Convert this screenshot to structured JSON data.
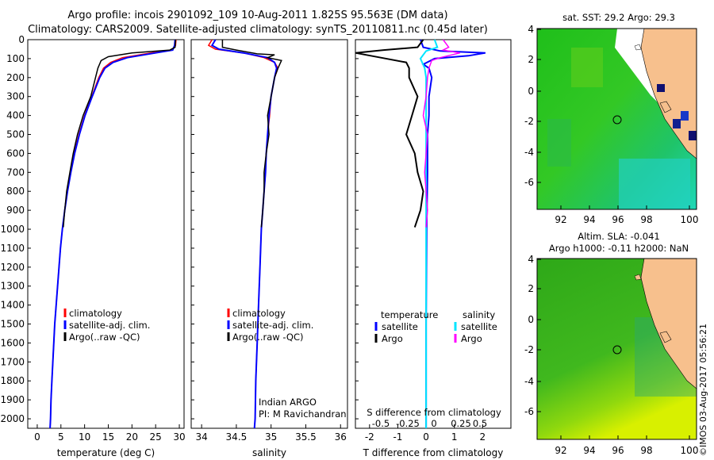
{
  "header": {
    "title_line1": "Argo profile: incois 2901092_109 10-Aug-2011 1.825S 95.563E (DM data)",
    "title_line2": "Climatology: CARS2009. Satellite-adjusted climatology: synTS_20110811.nc (0.45d later)"
  },
  "colors": {
    "clim": "#ff0000",
    "sat": "#0000ff",
    "argo": "#000000",
    "sal_sat": "#00e5ff",
    "sal_argo": "#ff00ff"
  },
  "chart_data": [
    {
      "type": "line",
      "id": "temperature",
      "xlabel": "temperature (deg C)",
      "ylabel": "",
      "xlim": [
        -2,
        31
      ],
      "ylim": [
        2050,
        0
      ],
      "xticks": [
        0,
        5,
        10,
        15,
        20,
        25,
        30
      ],
      "yticks": [
        0,
        100,
        200,
        300,
        400,
        500,
        600,
        700,
        800,
        900,
        1000,
        1100,
        1200,
        1300,
        1400,
        1500,
        1600,
        1700,
        1800,
        1900,
        2000
      ],
      "legend": [
        "climatology",
        "satellite-adj. clim.",
        "Argo(..raw -QC)"
      ],
      "series": [
        {
          "name": "climatology",
          "color": "#ff0000",
          "points": [
            [
              29.3,
              0
            ],
            [
              29.2,
              30
            ],
            [
              28.5,
              55
            ],
            [
              24,
              70
            ],
            [
              18,
              95
            ],
            [
              15.5,
              120
            ],
            [
              14,
              150
            ],
            [
              13,
              200
            ],
            [
              11.5,
              300
            ],
            [
              10,
              400
            ],
            [
              8.8,
              500
            ],
            [
              7.8,
              600
            ],
            [
              7,
              700
            ],
            [
              6.3,
              800
            ],
            [
              5.8,
              900
            ],
            [
              5.3,
              1000
            ],
            [
              4.9,
              1100
            ],
            [
              4.6,
              1200
            ],
            [
              4.3,
              1300
            ],
            [
              4,
              1400
            ],
            [
              3.7,
              1500
            ],
            [
              3.5,
              1600
            ],
            [
              3.3,
              1700
            ],
            [
              3.1,
              1800
            ],
            [
              2.9,
              1900
            ],
            [
              2.8,
              2000
            ],
            [
              2.7,
              2050
            ]
          ]
        },
        {
          "name": "satellite-adj. clim.",
          "color": "#0000ff",
          "points": [
            [
              29.1,
              0
            ],
            [
              29,
              30
            ],
            [
              28.6,
              55
            ],
            [
              25,
              70
            ],
            [
              19,
              95
            ],
            [
              16,
              120
            ],
            [
              14.3,
              150
            ],
            [
              13.2,
              200
            ],
            [
              11.6,
              300
            ],
            [
              10.1,
              400
            ],
            [
              8.9,
              500
            ],
            [
              7.9,
              600
            ],
            [
              7.1,
              700
            ],
            [
              6.4,
              800
            ],
            [
              5.8,
              900
            ],
            [
              5.3,
              1000
            ],
            [
              4.9,
              1100
            ],
            [
              4.6,
              1200
            ],
            [
              4.3,
              1300
            ],
            [
              4,
              1400
            ],
            [
              3.7,
              1500
            ],
            [
              3.5,
              1600
            ],
            [
              3.3,
              1700
            ],
            [
              3.1,
              1800
            ],
            [
              2.9,
              1900
            ],
            [
              2.8,
              2000
            ],
            [
              2.7,
              2050
            ]
          ]
        },
        {
          "name": "Argo(..raw -QC)",
          "color": "#000000",
          "points": [
            [
              29.2,
              0
            ],
            [
              29.1,
              40
            ],
            [
              28,
              55
            ],
            [
              20,
              70
            ],
            [
              15,
              90
            ],
            [
              13.5,
              110
            ],
            [
              12.8,
              150
            ],
            [
              12.3,
              200
            ],
            [
              11.3,
              300
            ],
            [
              9.7,
              400
            ],
            [
              8.5,
              500
            ],
            [
              7.6,
              600
            ],
            [
              6.9,
              700
            ],
            [
              6.2,
              800
            ],
            [
              5.8,
              900
            ],
            [
              5.5,
              990
            ]
          ]
        }
      ]
    },
    {
      "type": "line",
      "id": "salinity",
      "xlabel": "salinity",
      "xlim": [
        33.85,
        36.1
      ],
      "ylim": [
        2050,
        0
      ],
      "xticks": [
        34,
        34.5,
        35,
        35.5,
        36
      ],
      "legend": [
        "climatology",
        "satellite-adj. clim.",
        "Argo(..raw -QC)"
      ],
      "annotation_line1": "Indian ARGO",
      "annotation_line2": "PI: M Ravichandran",
      "series": [
        {
          "name": "climatology",
          "color": "#ff0000",
          "points": [
            [
              34.15,
              0
            ],
            [
              34.1,
              30
            ],
            [
              34.2,
              50
            ],
            [
              34.6,
              70
            ],
            [
              34.9,
              95
            ],
            [
              35.05,
              120
            ],
            [
              35.1,
              150
            ],
            [
              35.05,
              200
            ],
            [
              35,
              300
            ],
            [
              34.98,
              400
            ],
            [
              34.95,
              500
            ],
            [
              34.93,
              600
            ],
            [
              34.92,
              700
            ],
            [
              34.9,
              800
            ],
            [
              34.88,
              900
            ],
            [
              34.86,
              1000
            ],
            [
              34.84,
              1200
            ],
            [
              34.82,
              1400
            ],
            [
              34.8,
              1600
            ],
            [
              34.78,
              1800
            ],
            [
              34.77,
              2000
            ],
            [
              34.76,
              2050
            ]
          ]
        },
        {
          "name": "satellite-adj. clim.",
          "color": "#0000ff",
          "points": [
            [
              34.2,
              0
            ],
            [
              34.15,
              30
            ],
            [
              34.25,
              50
            ],
            [
              34.6,
              70
            ],
            [
              34.95,
              95
            ],
            [
              35.05,
              120
            ],
            [
              35.08,
              150
            ],
            [
              35.05,
              200
            ],
            [
              35,
              300
            ],
            [
              34.97,
              400
            ],
            [
              34.95,
              500
            ],
            [
              34.93,
              600
            ],
            [
              34.92,
              700
            ],
            [
              34.9,
              800
            ],
            [
              34.88,
              900
            ],
            [
              34.86,
              1000
            ],
            [
              34.84,
              1200
            ],
            [
              34.82,
              1400
            ],
            [
              34.8,
              1600
            ],
            [
              34.78,
              1800
            ],
            [
              34.77,
              2000
            ],
            [
              34.76,
              2050
            ]
          ]
        },
        {
          "name": "Argo(..raw -QC)",
          "color": "#000000",
          "points": [
            [
              34.3,
              0
            ],
            [
              34.3,
              40
            ],
            [
              34.5,
              55
            ],
            [
              34.8,
              75
            ],
            [
              35.05,
              80
            ],
            [
              34.95,
              95
            ],
            [
              35.15,
              110
            ],
            [
              35.1,
              150
            ],
            [
              35.05,
              200
            ],
            [
              35,
              300
            ],
            [
              34.95,
              400
            ],
            [
              34.97,
              500
            ],
            [
              34.93,
              600
            ],
            [
              34.9,
              700
            ],
            [
              34.9,
              800
            ],
            [
              34.88,
              900
            ],
            [
              34.86,
              990
            ]
          ]
        }
      ]
    },
    {
      "type": "line",
      "id": "difference",
      "xlabel": "T difference from climatology",
      "xlabel_top": "S difference from climatology",
      "xlim": [
        -2.5,
        3
      ],
      "ylim": [
        2050,
        0
      ],
      "xticks": [
        -2,
        -1,
        0,
        1,
        2
      ],
      "s_ticks": [
        "-0.5",
        "-0.25",
        "0",
        "0.25",
        "0.5"
      ],
      "legend_head_temperature": "temperature",
      "legend_head_salinity": "salinity",
      "legend_labels": [
        "satellite",
        "Argo",
        "satellite",
        "Argo"
      ],
      "series": [
        {
          "name": "temperature satellite",
          "color": "#0000ff",
          "points": [
            [
              -0.2,
              0
            ],
            [
              -0.1,
              40
            ],
            [
              0.5,
              60
            ],
            [
              2.1,
              70
            ],
            [
              1.5,
              85
            ],
            [
              0.3,
              100
            ],
            [
              -0.1,
              130
            ],
            [
              0.1,
              150
            ],
            [
              0.2,
              200
            ],
            [
              0.1,
              300
            ],
            [
              0.1,
              400
            ],
            [
              0.05,
              500
            ],
            [
              0.05,
              700
            ],
            [
              0.02,
              1000
            ],
            [
              0,
              1500
            ],
            [
              0,
              2050
            ]
          ]
        },
        {
          "name": "temperature Argo",
          "color": "#000000",
          "points": [
            [
              -0.1,
              0
            ],
            [
              -0.3,
              40
            ],
            [
              -1.5,
              55
            ],
            [
              -2.5,
              70
            ],
            [
              -1.6,
              95
            ],
            [
              -0.7,
              120
            ],
            [
              -0.6,
              150
            ],
            [
              -0.6,
              200
            ],
            [
              -0.3,
              300
            ],
            [
              -0.5,
              400
            ],
            [
              -0.7,
              500
            ],
            [
              -0.4,
              600
            ],
            [
              -0.3,
              700
            ],
            [
              -0.1,
              800
            ],
            [
              -0.2,
              900
            ],
            [
              -0.4,
              990
            ]
          ]
        },
        {
          "name": "salinity satellite",
          "color": "#00e5ff",
          "points": [
            [
              0.3,
              0
            ],
            [
              0.4,
              40
            ],
            [
              0,
              60
            ],
            [
              -0.2,
              100
            ],
            [
              -0.05,
              150
            ],
            [
              0,
              200
            ],
            [
              0,
              400
            ],
            [
              0,
              800
            ],
            [
              0,
              1200
            ],
            [
              0,
              1600
            ],
            [
              0,
              2050
            ]
          ]
        },
        {
          "name": "salinity Argo",
          "color": "#ff00ff",
          "points": [
            [
              0.6,
              0
            ],
            [
              0.8,
              40
            ],
            [
              0.6,
              55
            ],
            [
              1.2,
              70
            ],
            [
              0.5,
              95
            ],
            [
              0.2,
              110
            ],
            [
              0.1,
              150
            ],
            [
              0.05,
              200
            ],
            [
              0,
              300
            ],
            [
              -0.1,
              400
            ],
            [
              0.05,
              500
            ],
            [
              0,
              600
            ],
            [
              -0.05,
              700
            ],
            [
              0,
              800
            ],
            [
              0.05,
              900
            ],
            [
              0,
              990
            ]
          ]
        }
      ]
    }
  ],
  "maps": {
    "top_title": "sat. SST: 29.2  Argo: 29.3",
    "bottom_title_line1": "Altim. SLA: -0.041",
    "bottom_title_line2": "Argo h1000: -0.11  h2000: NaN",
    "lon_ticks": [
      "92",
      "94",
      "96",
      "98",
      "100"
    ],
    "lat_ticks": [
      "4",
      "2",
      "0",
      "-2",
      "-4",
      "-6"
    ]
  },
  "watermark": "©IMOS 03-Aug-2017 05:56:21"
}
